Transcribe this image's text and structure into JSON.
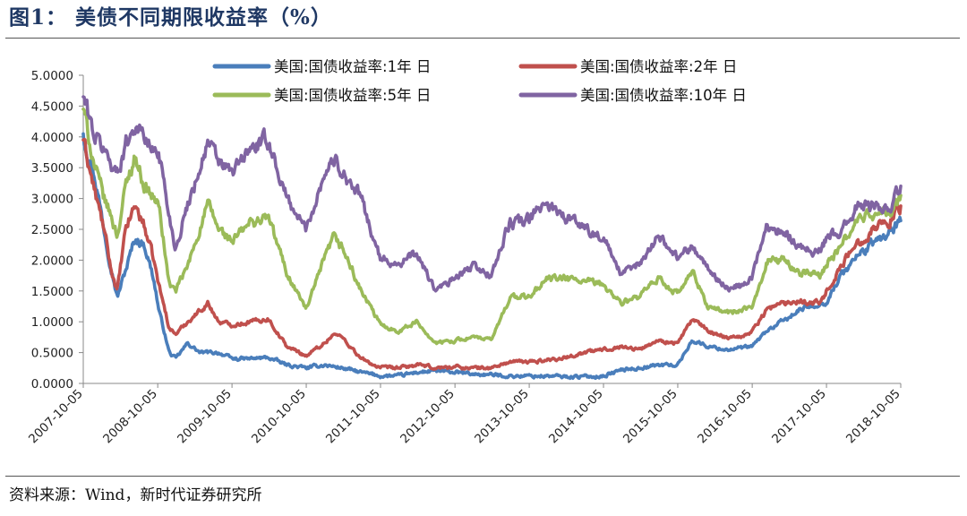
{
  "header": {
    "figure_title": "图1：  美债不同期限收益率（%）"
  },
  "footer": {
    "source": "资料来源：Wind，新时代证券研究所"
  },
  "chart_data": {
    "type": "line",
    "xlabel": "",
    "ylabel": "",
    "ylim": [
      0,
      5
    ],
    "y_ticks": [
      "0.0000",
      "0.5000",
      "1.0000",
      "1.5000",
      "2.0000",
      "2.5000",
      "3.0000",
      "3.5000",
      "4.0000",
      "4.5000",
      "5.0000"
    ],
    "x_ticks": [
      "2007-10-05",
      "2008-10-05",
      "2009-10-05",
      "2010-10-05",
      "2011-10-05",
      "2012-10-05",
      "2013-10-05",
      "2014-10-05",
      "2015-10-05",
      "2016-10-05",
      "2017-10-05",
      "2018-10-05"
    ],
    "x_range": [
      "2007-10-05",
      "2018-10-05"
    ],
    "grid": false,
    "legend_position": "top",
    "series": [
      {
        "name": "美国:国债收益率:1年 日",
        "color": "#4a7ebb",
        "points": [
          [
            "2007-10-05",
            4.05
          ],
          [
            "2007-12-01",
            3.35
          ],
          [
            "2008-02-01",
            2.2
          ],
          [
            "2008-03-20",
            1.4
          ],
          [
            "2008-05-15",
            2.0
          ],
          [
            "2008-06-15",
            2.35
          ],
          [
            "2008-08-01",
            2.25
          ],
          [
            "2008-09-15",
            1.7
          ],
          [
            "2008-10-10",
            1.2
          ],
          [
            "2008-12-01",
            0.5
          ],
          [
            "2009-01-01",
            0.4
          ],
          [
            "2009-03-01",
            0.65
          ],
          [
            "2009-05-01",
            0.5
          ],
          [
            "2009-08-01",
            0.5
          ],
          [
            "2009-10-05",
            0.4
          ],
          [
            "2010-01-01",
            0.4
          ],
          [
            "2010-04-01",
            0.42
          ],
          [
            "2010-07-01",
            0.3
          ],
          [
            "2010-10-05",
            0.25
          ],
          [
            "2011-01-01",
            0.3
          ],
          [
            "2011-04-01",
            0.25
          ],
          [
            "2011-07-01",
            0.18
          ],
          [
            "2011-10-05",
            0.12
          ],
          [
            "2012-01-01",
            0.12
          ],
          [
            "2012-04-01",
            0.18
          ],
          [
            "2012-07-01",
            0.2
          ],
          [
            "2012-10-05",
            0.18
          ],
          [
            "2013-01-01",
            0.15
          ],
          [
            "2013-04-01",
            0.14
          ],
          [
            "2013-07-01",
            0.12
          ],
          [
            "2013-10-05",
            0.12
          ],
          [
            "2014-01-01",
            0.12
          ],
          [
            "2014-04-01",
            0.11
          ],
          [
            "2014-07-01",
            0.11
          ],
          [
            "2014-10-05",
            0.12
          ],
          [
            "2015-01-01",
            0.22
          ],
          [
            "2015-04-01",
            0.25
          ],
          [
            "2015-07-01",
            0.3
          ],
          [
            "2015-10-05",
            0.3
          ],
          [
            "2015-12-15",
            0.7
          ],
          [
            "2016-03-01",
            0.6
          ],
          [
            "2016-06-01",
            0.55
          ],
          [
            "2016-09-01",
            0.58
          ],
          [
            "2016-10-05",
            0.6
          ],
          [
            "2016-12-15",
            0.85
          ],
          [
            "2017-03-01",
            1.0
          ],
          [
            "2017-06-01",
            1.2
          ],
          [
            "2017-09-01",
            1.3
          ],
          [
            "2017-10-05",
            1.32
          ],
          [
            "2017-12-15",
            1.75
          ],
          [
            "2018-03-01",
            2.05
          ],
          [
            "2018-06-01",
            2.3
          ],
          [
            "2018-08-15",
            2.45
          ],
          [
            "2018-10-05",
            2.64
          ]
        ]
      },
      {
        "name": "美国:国债收益率:2年 日",
        "color": "#c0504d",
        "points": [
          [
            "2007-10-05",
            3.95
          ],
          [
            "2007-12-01",
            3.1
          ],
          [
            "2008-01-15",
            2.5
          ],
          [
            "2008-02-15",
            1.9
          ],
          [
            "2008-03-20",
            1.5
          ],
          [
            "2008-05-01",
            2.5
          ],
          [
            "2008-06-15",
            2.9
          ],
          [
            "2008-08-01",
            2.55
          ],
          [
            "2008-09-15",
            2.0
          ],
          [
            "2008-10-10",
            1.6
          ],
          [
            "2008-12-01",
            0.9
          ],
          [
            "2009-01-01",
            0.8
          ],
          [
            "2009-03-01",
            1.0
          ],
          [
            "2009-06-08",
            1.3
          ],
          [
            "2009-08-01",
            1.0
          ],
          [
            "2009-10-05",
            0.95
          ],
          [
            "2010-01-01",
            1.0
          ],
          [
            "2010-04-01",
            1.05
          ],
          [
            "2010-07-01",
            0.6
          ],
          [
            "2010-10-05",
            0.45
          ],
          [
            "2011-01-01",
            0.65
          ],
          [
            "2011-02-15",
            0.8
          ],
          [
            "2011-04-01",
            0.75
          ],
          [
            "2011-07-01",
            0.4
          ],
          [
            "2011-10-05",
            0.25
          ],
          [
            "2012-01-01",
            0.25
          ],
          [
            "2012-04-01",
            0.3
          ],
          [
            "2012-07-01",
            0.25
          ],
          [
            "2012-10-05",
            0.27
          ],
          [
            "2013-01-01",
            0.25
          ],
          [
            "2013-04-01",
            0.25
          ],
          [
            "2013-07-01",
            0.35
          ],
          [
            "2013-10-05",
            0.35
          ],
          [
            "2014-01-01",
            0.38
          ],
          [
            "2014-04-01",
            0.42
          ],
          [
            "2014-07-01",
            0.5
          ],
          [
            "2014-10-05",
            0.55
          ],
          [
            "2015-01-01",
            0.6
          ],
          [
            "2015-04-01",
            0.55
          ],
          [
            "2015-07-01",
            0.7
          ],
          [
            "2015-10-05",
            0.65
          ],
          [
            "2015-12-15",
            1.05
          ],
          [
            "2016-03-01",
            0.85
          ],
          [
            "2016-06-01",
            0.75
          ],
          [
            "2016-09-01",
            0.78
          ],
          [
            "2016-10-05",
            0.85
          ],
          [
            "2016-12-15",
            1.2
          ],
          [
            "2017-03-01",
            1.3
          ],
          [
            "2017-06-01",
            1.35
          ],
          [
            "2017-09-01",
            1.3
          ],
          [
            "2017-10-05",
            1.5
          ],
          [
            "2017-12-15",
            1.9
          ],
          [
            "2018-03-01",
            2.25
          ],
          [
            "2018-06-01",
            2.55
          ],
          [
            "2018-08-15",
            2.65
          ],
          [
            "2018-10-05",
            2.88
          ]
        ]
      },
      {
        "name": "美国:国债收益率:5年 日",
        "color": "#9bbb59",
        "points": [
          [
            "2007-10-05",
            4.45
          ],
          [
            "2007-12-01",
            3.5
          ],
          [
            "2008-01-15",
            3.0
          ],
          [
            "2008-02-15",
            2.75
          ],
          [
            "2008-03-20",
            2.4
          ],
          [
            "2008-05-01",
            3.2
          ],
          [
            "2008-06-15",
            3.7
          ],
          [
            "2008-08-01",
            3.2
          ],
          [
            "2008-09-15",
            3.0
          ],
          [
            "2008-10-10",
            2.9
          ],
          [
            "2008-12-01",
            1.6
          ],
          [
            "2009-01-01",
            1.5
          ],
          [
            "2009-03-01",
            1.9
          ],
          [
            "2009-06-08",
            2.9
          ],
          [
            "2009-08-01",
            2.5
          ],
          [
            "2009-10-05",
            2.3
          ],
          [
            "2010-01-01",
            2.6
          ],
          [
            "2010-04-01",
            2.7
          ],
          [
            "2010-07-01",
            1.8
          ],
          [
            "2010-10-05",
            1.2
          ],
          [
            "2011-01-01",
            2.0
          ],
          [
            "2011-02-15",
            2.35
          ],
          [
            "2011-04-01",
            2.2
          ],
          [
            "2011-07-01",
            1.5
          ],
          [
            "2011-10-05",
            0.95
          ],
          [
            "2012-01-01",
            0.85
          ],
          [
            "2012-04-01",
            1.0
          ],
          [
            "2012-07-01",
            0.65
          ],
          [
            "2012-10-05",
            0.7
          ],
          [
            "2013-01-01",
            0.75
          ],
          [
            "2013-04-01",
            0.7
          ],
          [
            "2013-07-01",
            1.4
          ],
          [
            "2013-10-05",
            1.4
          ],
          [
            "2014-01-01",
            1.7
          ],
          [
            "2014-04-01",
            1.7
          ],
          [
            "2014-07-01",
            1.65
          ],
          [
            "2014-10-05",
            1.6
          ],
          [
            "2015-01-01",
            1.3
          ],
          [
            "2015-04-01",
            1.4
          ],
          [
            "2015-07-01",
            1.7
          ],
          [
            "2015-10-05",
            1.45
          ],
          [
            "2015-12-15",
            1.8
          ],
          [
            "2016-03-01",
            1.25
          ],
          [
            "2016-06-01",
            1.15
          ],
          [
            "2016-09-01",
            1.2
          ],
          [
            "2016-10-05",
            1.2
          ],
          [
            "2016-12-15",
            2.0
          ],
          [
            "2017-03-01",
            2.0
          ],
          [
            "2017-06-01",
            1.8
          ],
          [
            "2017-09-01",
            1.75
          ],
          [
            "2017-10-05",
            1.95
          ],
          [
            "2017-12-15",
            2.2
          ],
          [
            "2018-03-01",
            2.65
          ],
          [
            "2018-06-01",
            2.75
          ],
          [
            "2018-08-15",
            2.75
          ],
          [
            "2018-10-05",
            3.05
          ]
        ]
      },
      {
        "name": "美国:国债收益率:10年 日",
        "color": "#8064a2",
        "points": [
          [
            "2007-10-05",
            4.65
          ],
          [
            "2007-12-01",
            4.0
          ],
          [
            "2008-01-15",
            3.8
          ],
          [
            "2008-02-15",
            3.6
          ],
          [
            "2008-03-20",
            3.4
          ],
          [
            "2008-05-01",
            3.9
          ],
          [
            "2008-06-15",
            4.2
          ],
          [
            "2008-08-01",
            4.0
          ],
          [
            "2008-09-15",
            3.75
          ],
          [
            "2008-10-10",
            3.8
          ],
          [
            "2008-12-01",
            2.7
          ],
          [
            "2009-01-01",
            2.2
          ],
          [
            "2009-03-01",
            2.9
          ],
          [
            "2009-06-08",
            3.9
          ],
          [
            "2009-08-01",
            3.6
          ],
          [
            "2009-10-05",
            3.4
          ],
          [
            "2010-01-01",
            3.8
          ],
          [
            "2010-04-01",
            3.95
          ],
          [
            "2010-07-01",
            3.0
          ],
          [
            "2010-10-05",
            2.5
          ],
          [
            "2011-01-01",
            3.4
          ],
          [
            "2011-02-15",
            3.65
          ],
          [
            "2011-04-01",
            3.45
          ],
          [
            "2011-07-01",
            3.0
          ],
          [
            "2011-10-05",
            2.0
          ],
          [
            "2012-01-01",
            1.95
          ],
          [
            "2012-04-01",
            2.1
          ],
          [
            "2012-07-01",
            1.5
          ],
          [
            "2012-10-05",
            1.7
          ],
          [
            "2013-01-01",
            1.9
          ],
          [
            "2013-04-01",
            1.75
          ],
          [
            "2013-07-01",
            2.6
          ],
          [
            "2013-10-05",
            2.65
          ],
          [
            "2014-01-01",
            2.95
          ],
          [
            "2014-04-01",
            2.7
          ],
          [
            "2014-07-01",
            2.55
          ],
          [
            "2014-10-05",
            2.35
          ],
          [
            "2015-01-01",
            1.75
          ],
          [
            "2015-04-01",
            1.95
          ],
          [
            "2015-07-01",
            2.4
          ],
          [
            "2015-10-05",
            2.05
          ],
          [
            "2015-12-15",
            2.25
          ],
          [
            "2016-03-01",
            1.85
          ],
          [
            "2016-06-01",
            1.55
          ],
          [
            "2016-09-01",
            1.6
          ],
          [
            "2016-10-05",
            1.75
          ],
          [
            "2016-12-15",
            2.55
          ],
          [
            "2017-03-01",
            2.5
          ],
          [
            "2017-06-01",
            2.2
          ],
          [
            "2017-09-01",
            2.15
          ],
          [
            "2017-10-05",
            2.35
          ],
          [
            "2017-12-15",
            2.45
          ],
          [
            "2018-03-01",
            2.85
          ],
          [
            "2018-06-01",
            2.9
          ],
          [
            "2018-08-15",
            2.85
          ],
          [
            "2018-10-05",
            3.2
          ]
        ]
      }
    ]
  }
}
